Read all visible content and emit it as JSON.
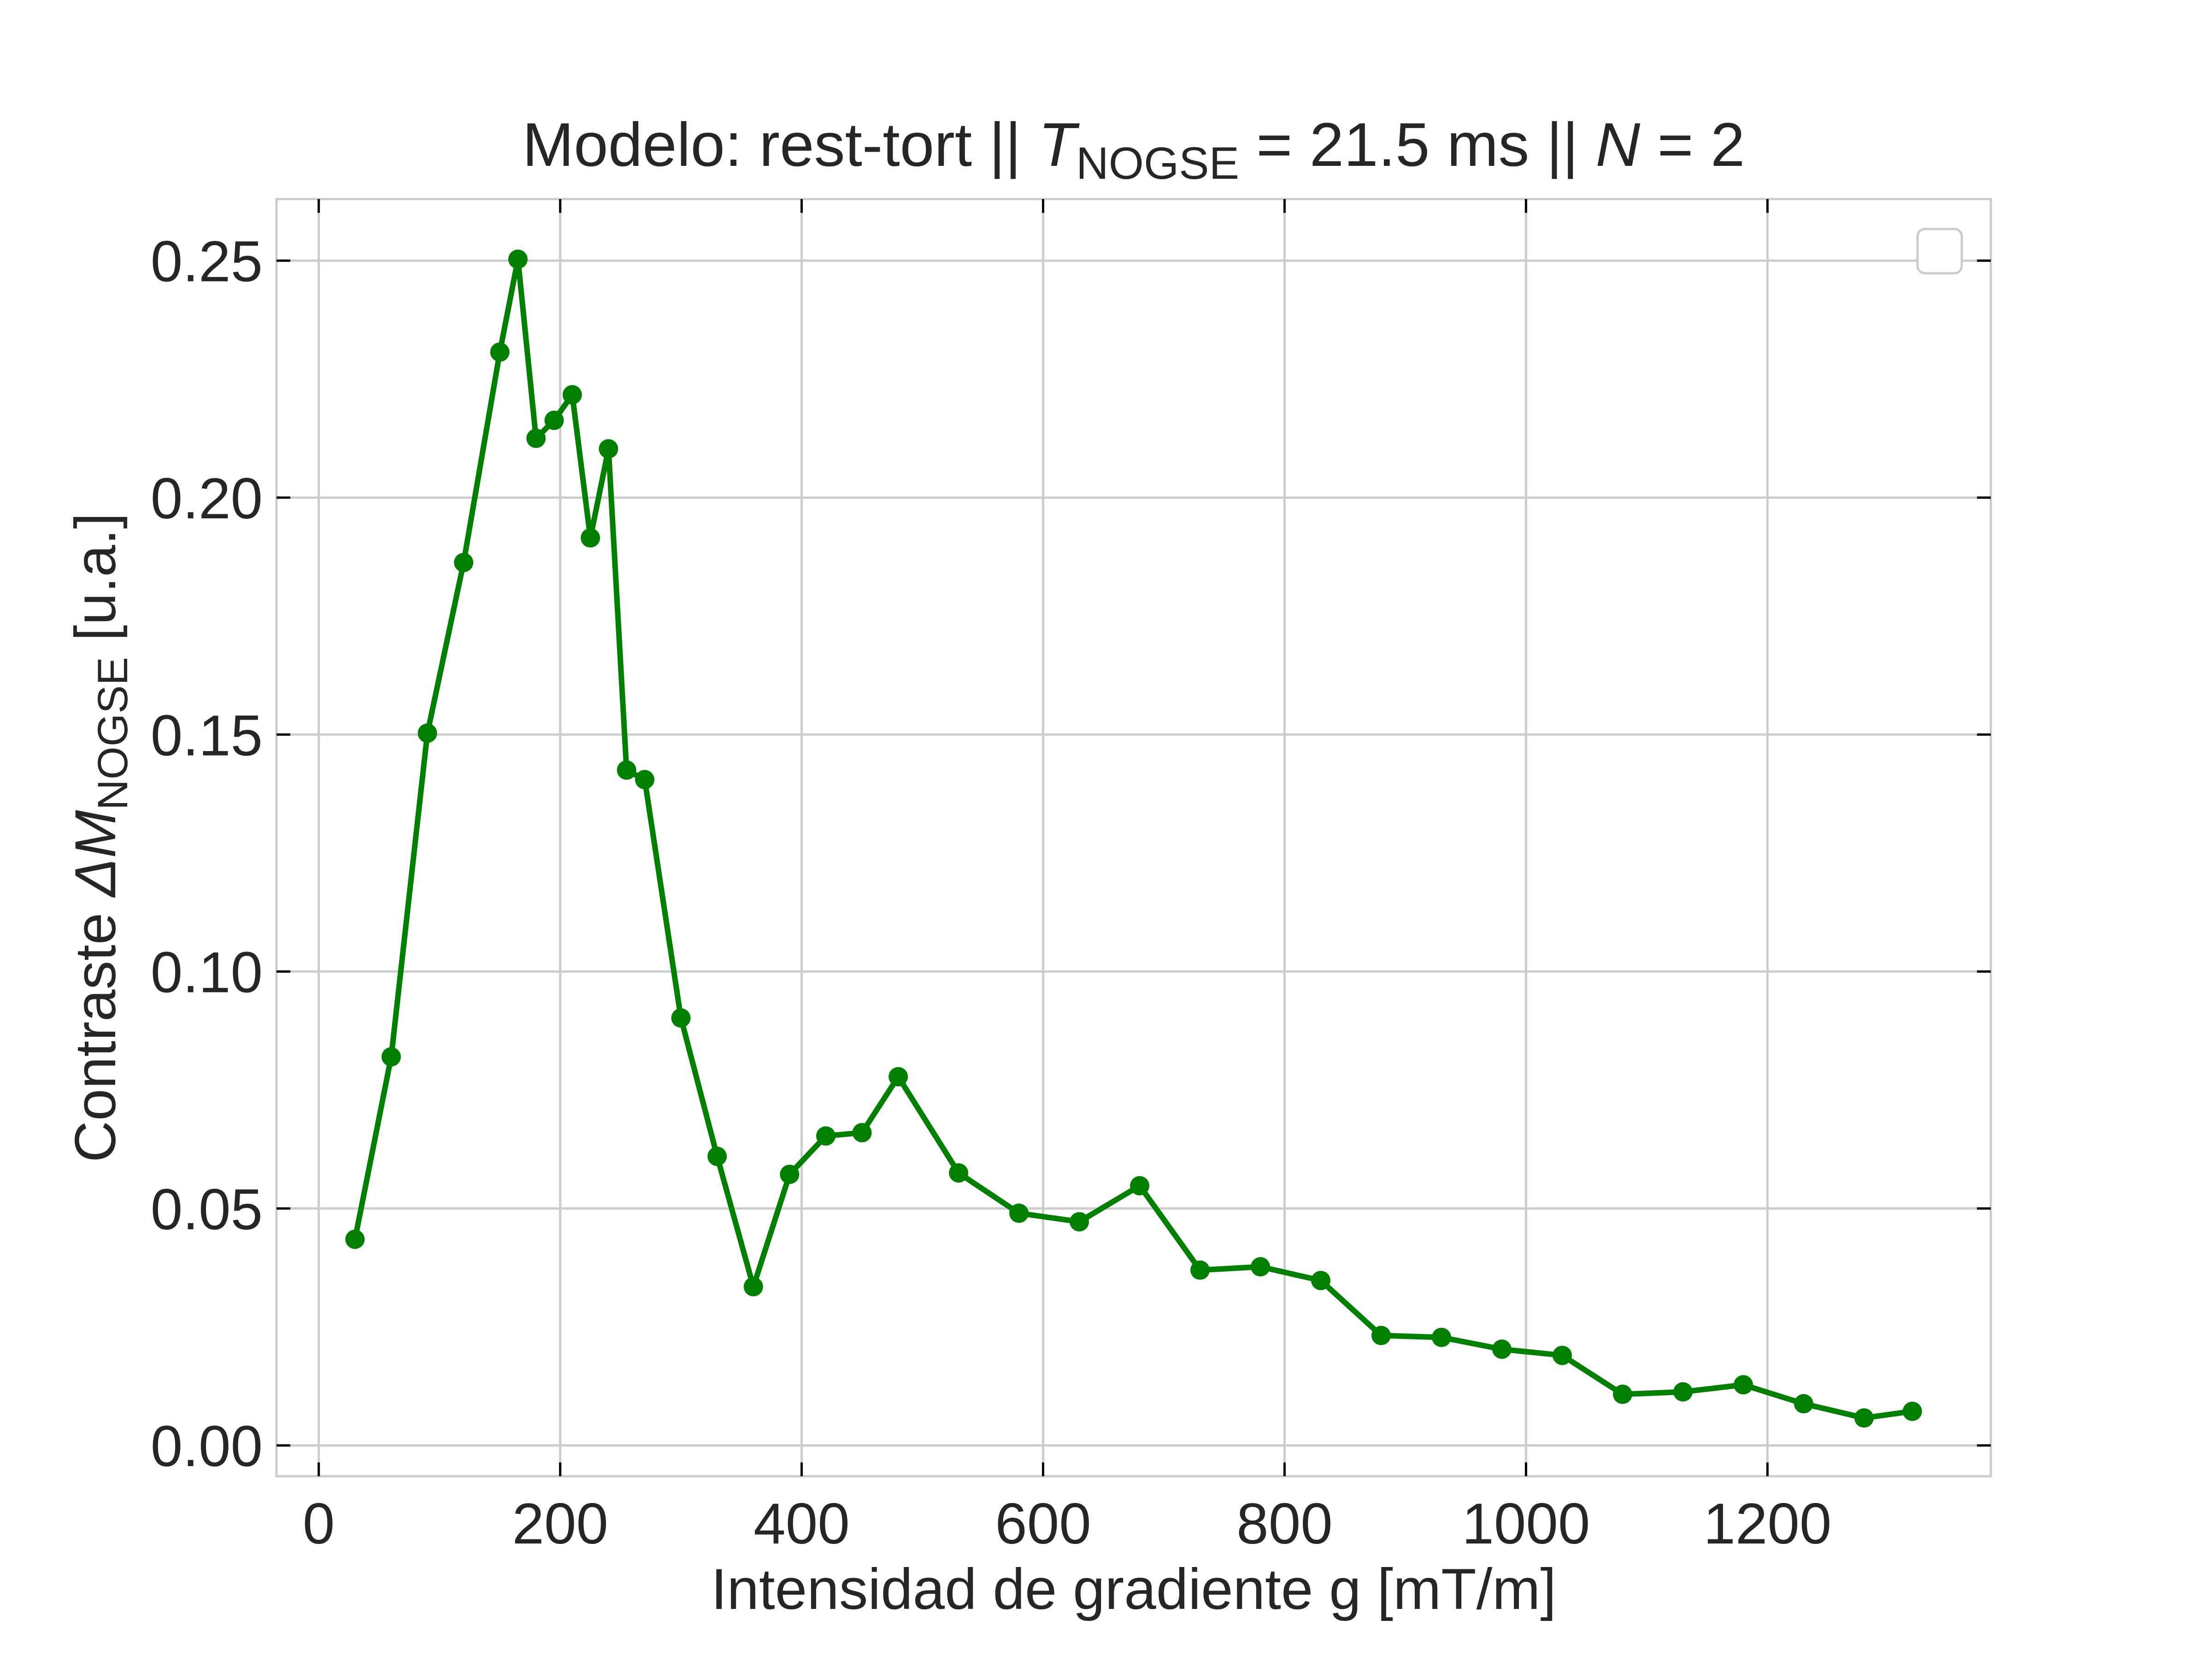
{
  "chart_data": {
    "type": "line",
    "title": {
      "prefix": "Modelo: rest-tort || ",
      "T_symbol": "T",
      "T_subscript": "NOGSE",
      "middle": " = 21.5 ms  ||  ",
      "N_symbol": "N",
      "suffix": " = 2"
    },
    "xlabel": "Intensidad de gradiente g [mT/m]",
    "ylabel": {
      "prefix": "Contraste ",
      "symbol": "ΔM",
      "subscript": "NOGSE",
      "suffix": " [u.a.]"
    },
    "xlim": [
      -35,
      1385
    ],
    "ylim": [
      -0.0065,
      0.263
    ],
    "x_ticks": [
      0,
      200,
      400,
      600,
      800,
      1000,
      1200
    ],
    "x_tick_labels": [
      "0",
      "200",
      "400",
      "600",
      "800",
      "1000",
      "1200"
    ],
    "y_ticks": [
      0.0,
      0.05,
      0.1,
      0.15,
      0.2,
      0.25
    ],
    "y_tick_labels": [
      "0.00",
      "0.05",
      "0.10",
      "0.15",
      "0.20",
      "0.25"
    ],
    "grid": true,
    "legend": "top-right (empty)",
    "colors": {
      "series": "#007f00",
      "grid": "#cccccc",
      "spine": "#cccccc",
      "text": "#262626"
    },
    "series": [
      {
        "x": [
          30,
          60,
          90,
          120,
          150,
          165,
          180,
          195,
          210,
          225,
          240,
          255,
          270,
          300,
          330,
          360,
          390,
          420,
          450,
          480,
          530,
          580,
          630,
          680,
          730,
          780,
          830,
          880,
          930,
          980,
          1030,
          1080,
          1130,
          1180,
          1230,
          1280,
          1320
        ],
        "y": [
          0.0435,
          0.082,
          0.1503,
          0.1863,
          0.2307,
          0.2503,
          0.2125,
          0.2163,
          0.2217,
          0.1915,
          0.2103,
          0.1425,
          0.1405,
          0.0902,
          0.061,
          0.0335,
          0.0572,
          0.0653,
          0.066,
          0.0778,
          0.0575,
          0.049,
          0.0472,
          0.0548,
          0.037,
          0.0377,
          0.0348,
          0.0232,
          0.0228,
          0.0203,
          0.019,
          0.0108,
          0.0113,
          0.0128,
          0.0088,
          0.0058,
          0.0072
        ]
      }
    ]
  }
}
